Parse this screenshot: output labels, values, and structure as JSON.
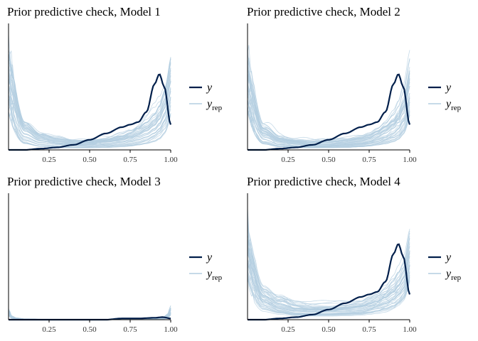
{
  "colors": {
    "y": "#011f4b",
    "yrep": "#b3cde0",
    "axis": "#000000",
    "tick_text": "#333333"
  },
  "legend": {
    "y_label": "y",
    "yrep_label": "y",
    "yrep_subscript": "rep"
  },
  "chart_data": [
    {
      "type": "line",
      "title": "Prior predictive check, Model 1",
      "xlabel": "",
      "ylabel": "",
      "xlim": [
        0.0,
        1.0
      ],
      "xticks": [
        "0.25",
        "0.50",
        "0.75",
        "1.00"
      ],
      "grid": false,
      "legend_position": "right",
      "series": [
        {
          "name": "y",
          "x": [
            0.0,
            0.1,
            0.2,
            0.3,
            0.4,
            0.5,
            0.6,
            0.7,
            0.75,
            0.8,
            0.85,
            0.9,
            0.93,
            0.96,
            1.0
          ],
          "values": [
            0.0,
            0.0,
            0.01,
            0.02,
            0.04,
            0.08,
            0.13,
            0.18,
            0.2,
            0.22,
            0.3,
            0.52,
            0.6,
            0.5,
            0.2
          ]
        },
        {
          "name": "y_rep",
          "x": [
            0.0,
            0.1,
            0.2,
            0.3,
            0.4,
            0.5,
            0.6,
            0.7,
            0.75,
            0.8,
            0.85,
            0.9,
            0.93,
            0.96,
            1.0
          ],
          "values": [
            1.0,
            0.35,
            0.2,
            0.15,
            0.12,
            0.12,
            0.14,
            0.18,
            0.22,
            0.28,
            0.35,
            0.45,
            0.55,
            0.7,
            0.95
          ]
        }
      ]
    },
    {
      "type": "line",
      "title": "Prior predictive check, Model 2",
      "xlabel": "",
      "ylabel": "",
      "xlim": [
        0.0,
        1.0
      ],
      "xticks": [
        "0.25",
        "0.50",
        "0.75",
        "1.00"
      ],
      "grid": false,
      "legend_position": "right",
      "series": [
        {
          "name": "y",
          "x": [
            0.0,
            0.1,
            0.2,
            0.3,
            0.4,
            0.5,
            0.6,
            0.7,
            0.75,
            0.8,
            0.85,
            0.9,
            0.93,
            0.96,
            1.0
          ],
          "values": [
            0.0,
            0.0,
            0.01,
            0.02,
            0.04,
            0.08,
            0.13,
            0.18,
            0.2,
            0.22,
            0.3,
            0.52,
            0.6,
            0.5,
            0.2
          ]
        },
        {
          "name": "y_rep",
          "x": [
            0.0,
            0.1,
            0.2,
            0.3,
            0.4,
            0.5,
            0.6,
            0.7,
            0.75,
            0.8,
            0.85,
            0.9,
            0.93,
            0.96,
            1.0
          ],
          "values": [
            1.0,
            0.33,
            0.18,
            0.14,
            0.12,
            0.12,
            0.14,
            0.18,
            0.22,
            0.28,
            0.35,
            0.45,
            0.55,
            0.7,
            0.95
          ]
        }
      ]
    },
    {
      "type": "line",
      "title": "Prior predictive check, Model 3",
      "xlabel": "",
      "ylabel": "",
      "xlim": [
        0.0,
        1.0
      ],
      "xticks": [
        "0.25",
        "0.50",
        "0.75",
        "1.00"
      ],
      "grid": false,
      "legend_position": "right",
      "series": [
        {
          "name": "y",
          "x": [
            0.0,
            0.1,
            0.2,
            0.3,
            0.4,
            0.5,
            0.6,
            0.7,
            0.8,
            0.9,
            0.95,
            1.0
          ],
          "values": [
            0.0,
            0.0,
            0.0,
            0.0,
            0.0,
            0.0,
            0.0,
            0.01,
            0.01,
            0.015,
            0.02,
            0.01
          ]
        },
        {
          "name": "y_rep",
          "x": [
            0.0,
            0.02,
            0.05,
            0.1,
            0.2,
            0.5,
            0.8,
            0.9,
            0.95,
            0.98,
            1.0
          ],
          "values": [
            0.1,
            0.04,
            0.02,
            0.01,
            0.005,
            0.0,
            0.005,
            0.01,
            0.02,
            0.05,
            0.12
          ]
        }
      ]
    },
    {
      "type": "line",
      "title": "Prior predictive check, Model 4",
      "xlabel": "",
      "ylabel": "",
      "xlim": [
        0.0,
        1.0
      ],
      "xticks": [
        "0.25",
        "0.50",
        "0.75",
        "1.00"
      ],
      "grid": false,
      "legend_position": "right",
      "series": [
        {
          "name": "y",
          "x": [
            0.0,
            0.1,
            0.2,
            0.3,
            0.4,
            0.5,
            0.6,
            0.7,
            0.75,
            0.8,
            0.85,
            0.9,
            0.93,
            0.96,
            1.0
          ],
          "values": [
            0.0,
            0.0,
            0.01,
            0.02,
            0.04,
            0.08,
            0.13,
            0.18,
            0.2,
            0.22,
            0.3,
            0.52,
            0.6,
            0.5,
            0.2
          ]
        },
        {
          "name": "y_rep",
          "x": [
            0.0,
            0.1,
            0.2,
            0.3,
            0.4,
            0.5,
            0.6,
            0.7,
            0.75,
            0.8,
            0.85,
            0.9,
            0.93,
            0.96,
            1.0
          ],
          "values": [
            1.0,
            0.45,
            0.3,
            0.22,
            0.2,
            0.2,
            0.22,
            0.25,
            0.3,
            0.35,
            0.42,
            0.52,
            0.62,
            0.72,
            0.95
          ]
        }
      ]
    }
  ]
}
